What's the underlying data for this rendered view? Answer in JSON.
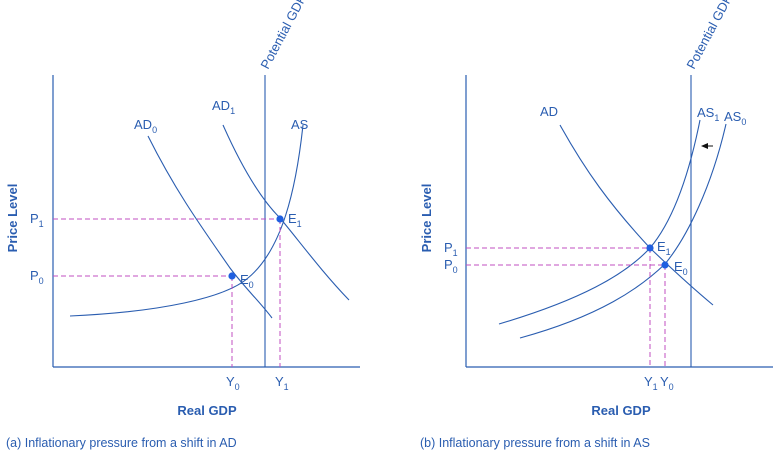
{
  "panel_a": {
    "caption": "(a) Inflationary pressure from a shift in AD",
    "x_axis": "Real GDP",
    "y_axis": "Price Level",
    "potential": "Potential GDP",
    "ad0": {
      "main": "AD",
      "sub": "0"
    },
    "ad1": {
      "main": "AD",
      "sub": "1"
    },
    "as": "AS",
    "p0": {
      "main": "P",
      "sub": "0"
    },
    "p1": {
      "main": "P",
      "sub": "1"
    },
    "y0": {
      "main": "Y",
      "sub": "0"
    },
    "y1": {
      "main": "Y",
      "sub": "1"
    },
    "e0": {
      "main": "E",
      "sub": "0"
    },
    "e1": {
      "main": "E",
      "sub": "1"
    }
  },
  "panel_b": {
    "caption": "(b) Inflationary pressure from a shift in AS",
    "x_axis": "Real GDP",
    "y_axis": "Price Level",
    "potential": "Potential GDP",
    "ad": "AD",
    "as1": {
      "main": "AS",
      "sub": "1"
    },
    "as0": {
      "main": "AS",
      "sub": "0"
    },
    "p0": {
      "main": "P",
      "sub": "0"
    },
    "p1": {
      "main": "P",
      "sub": "1"
    },
    "y0": {
      "main": "Y",
      "sub": "0"
    },
    "y1": {
      "main": "Y",
      "sub": "1"
    },
    "e0": {
      "main": "E",
      "sub": "0"
    },
    "e1": {
      "main": "E",
      "sub": "1"
    }
  },
  "colors": {
    "curve": "#2a5db0",
    "guide": "#c04fc0",
    "point": "#1f5fe0"
  },
  "icons": {
    "shift_arrow": "left-arrow-icon"
  }
}
